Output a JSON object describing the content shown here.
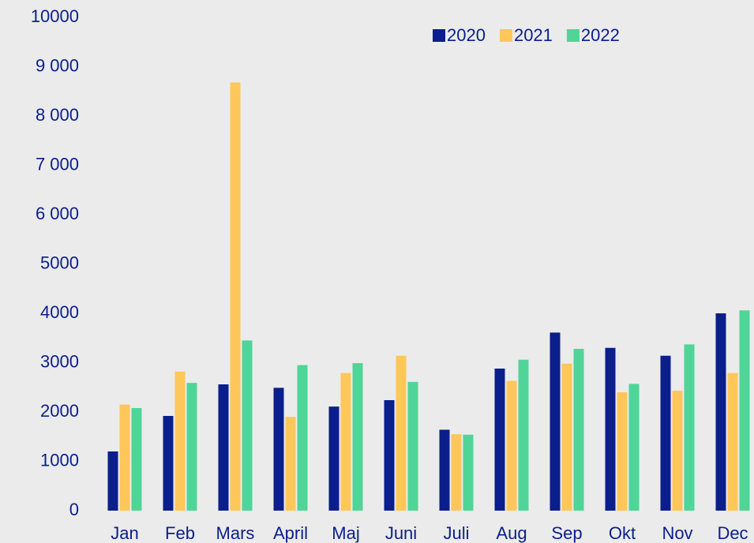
{
  "chart_data": {
    "type": "bar",
    "categories": [
      "Jan",
      "Feb",
      "Mars",
      "April",
      "Maj",
      "Juni",
      "Juli",
      "Aug",
      "Sep",
      "Okt",
      "Nov",
      "Dec"
    ],
    "series": [
      {
        "name": "2020",
        "color": "#0a1e8c",
        "values": [
          1200,
          1920,
          2560,
          2490,
          2110,
          2240,
          1640,
          2880,
          3610,
          3300,
          3140,
          4000
        ]
      },
      {
        "name": "2021",
        "color": "#ffc65a",
        "values": [
          2150,
          2820,
          8680,
          1900,
          2790,
          3140,
          1550,
          2630,
          2980,
          2400,
          2430,
          2790
        ]
      },
      {
        "name": "2022",
        "color": "#4fd597",
        "values": [
          2080,
          2590,
          3450,
          2950,
          2990,
          2610,
          1540,
          3060,
          3280,
          2570,
          3370,
          4060
        ]
      }
    ],
    "ylim": [
      0,
      10000
    ],
    "yticks": [
      0,
      1000,
      2000,
      3000,
      {
        "value": 4000,
        "label": "4000"
      },
      5000,
      {
        "value": 6000,
        "label": "6 000"
      },
      {
        "value": 7000,
        "label": "7 000"
      },
      {
        "value": 8000,
        "label": "8 000"
      },
      {
        "value": 9000,
        "label": "9 000"
      },
      10000
    ],
    "grid": false,
    "legend": "top-right"
  }
}
